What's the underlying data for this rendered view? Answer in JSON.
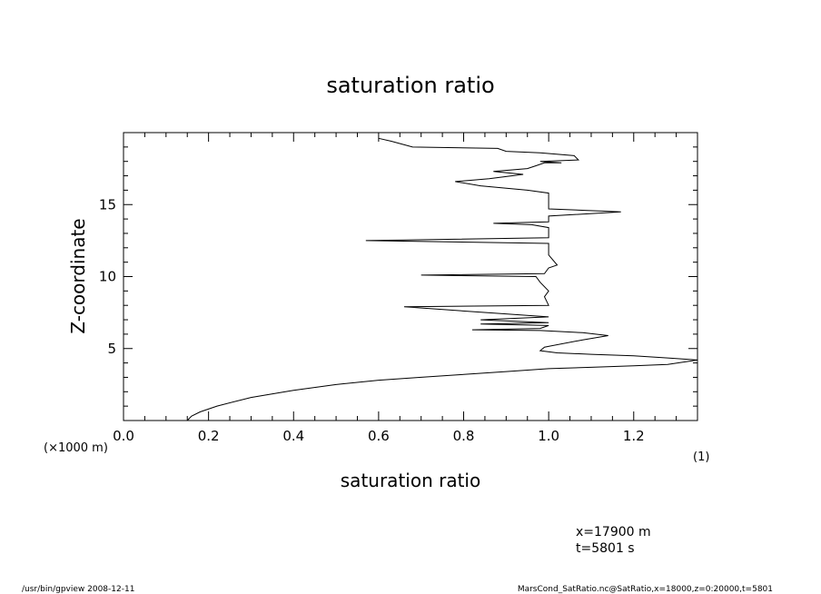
{
  "chart_data": {
    "type": "line",
    "title": "saturation ratio",
    "xlabel": "saturation ratio",
    "ylabel": "Z-coordinate",
    "xlim": [
      0.0,
      1.35
    ],
    "ylim": [
      0,
      20
    ],
    "x_ticks": [
      0.0,
      0.2,
      0.4,
      0.6,
      0.8,
      1.0,
      1.2
    ],
    "x_tick_labels": [
      "0.0",
      "0.2",
      "0.4",
      "0.6",
      "0.8",
      "1.0",
      "1.2"
    ],
    "y_ticks": [
      5,
      10,
      15
    ],
    "y_tick_labels": [
      "5",
      "10",
      "15"
    ],
    "y_unit_label": "(×1000 m)",
    "x_unit_label": "(1)",
    "grid": false,
    "series": [
      {
        "x": [
          0.15,
          0.16,
          0.18,
          0.22,
          0.3,
          0.4,
          0.5,
          0.6,
          0.7,
          0.8,
          0.9,
          1.0,
          1.1,
          1.2,
          1.28,
          1.35,
          1.28,
          1.2,
          1.1,
          1.02,
          0.98,
          0.99,
          1.08,
          1.14,
          1.08,
          0.98,
          0.82,
          0.98,
          1.0,
          0.84,
          1.0,
          0.84,
          1.0,
          0.66,
          1.0,
          0.99,
          1.0,
          0.98,
          0.97,
          0.7,
          0.99,
          1.0,
          1.02,
          1.0,
          1.0,
          0.57,
          1.0,
          1.0,
          0.96,
          0.87,
          1.0,
          1.0,
          1.17,
          1.0,
          1.0,
          1.0,
          1.0,
          0.95,
          0.84,
          0.78,
          0.86,
          0.94,
          0.87,
          0.95,
          0.97,
          0.99,
          1.03,
          0.98,
          1.07,
          1.06,
          0.98,
          0.9,
          0.88,
          0.68,
          0.63,
          0.6
        ],
        "y": [
          0.0,
          0.3,
          0.6,
          1.0,
          1.6,
          2.1,
          2.5,
          2.8,
          3.0,
          3.2,
          3.4,
          3.6,
          3.7,
          3.8,
          3.9,
          4.2,
          4.35,
          4.5,
          4.6,
          4.7,
          4.85,
          5.1,
          5.6,
          5.9,
          6.1,
          6.25,
          6.3,
          6.4,
          6.6,
          6.7,
          6.8,
          7.0,
          7.2,
          7.9,
          8.0,
          8.6,
          9.0,
          9.6,
          10.0,
          10.1,
          10.2,
          10.6,
          10.8,
          11.5,
          12.3,
          12.5,
          12.7,
          13.4,
          13.6,
          13.7,
          13.8,
          14.2,
          14.5,
          14.7,
          15.0,
          15.5,
          15.8,
          16.0,
          16.3,
          16.6,
          16.8,
          17.1,
          17.3,
          17.5,
          17.7,
          17.9,
          17.9,
          18.0,
          18.1,
          18.4,
          18.6,
          18.7,
          18.9,
          19.0,
          19.4,
          19.6
        ]
      }
    ]
  },
  "info": {
    "x_position": "x=17900  m",
    "time": "t=5801  s"
  },
  "footer": {
    "left": "/usr/bin/gpview   2008-12-11",
    "right": "MarsCond_SatRatio.nc@SatRatio,x=18000,z=0:20000,t=5801"
  }
}
